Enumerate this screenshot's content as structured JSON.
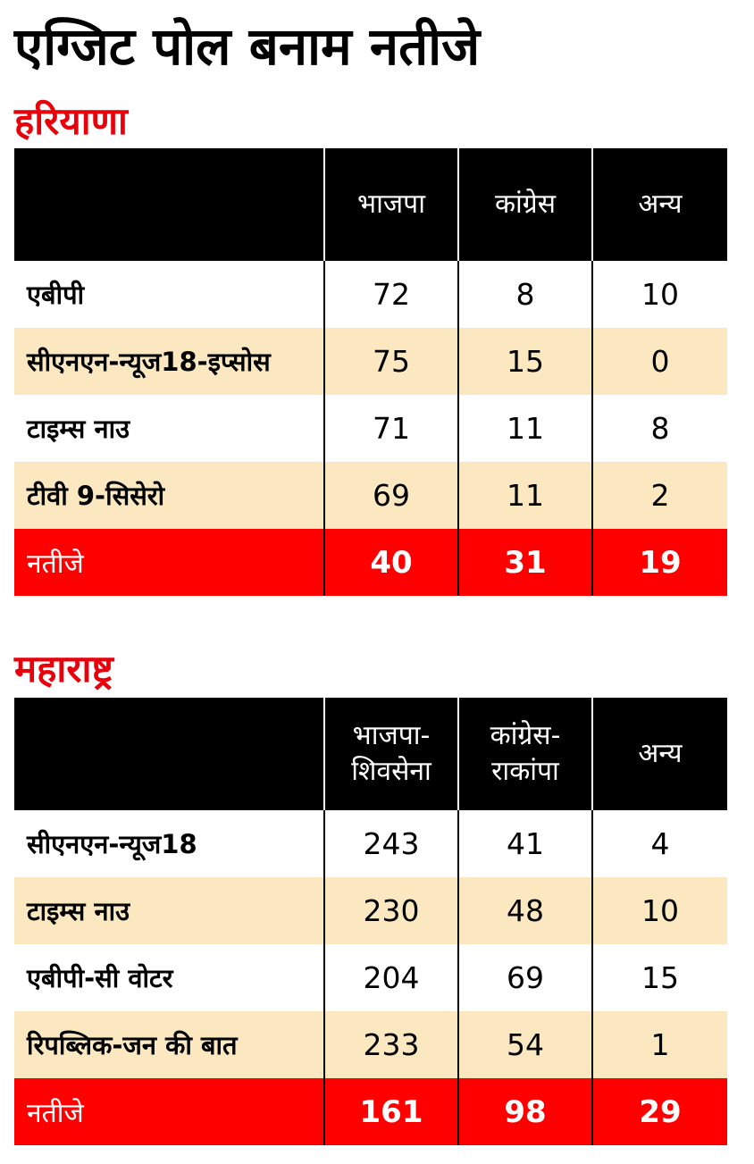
{
  "title": "एग्जिट पोल बनाम नतीजे",
  "colors": {
    "header_bg": "#000000",
    "accent_red": "#ff0000",
    "section_title_red": "#e8000b",
    "alt_row": "#fbe8c1"
  },
  "sections": [
    {
      "title": "हरियाणा",
      "columns": [
        "",
        "भाजपा",
        "कांग्रेस",
        "अन्य"
      ],
      "rows": [
        {
          "name": "एबीपी",
          "values": [
            "72",
            "8",
            "10"
          ]
        },
        {
          "name": "सीएनएन-न्यूज18-इप्सोस",
          "values": [
            "75",
            "15",
            "0"
          ]
        },
        {
          "name": "टाइम्स नाउ",
          "values": [
            "71",
            "11",
            "8"
          ]
        },
        {
          "name": "टीवी 9-सिसेरो",
          "values": [
            "69",
            "11",
            "2"
          ]
        }
      ],
      "result": {
        "name": "नतीजे",
        "values": [
          "40",
          "31",
          "19"
        ]
      }
    },
    {
      "title": "महाराष्ट्र",
      "columns": [
        "",
        "भाजपा-",
        "शिवसेना",
        "कांग्रेस-",
        "राकांपा",
        "अन्य"
      ],
      "rows": [
        {
          "name": "सीएनएन-न्यूज18",
          "values": [
            "243",
            "41",
            "4"
          ]
        },
        {
          "name": "टाइम्स नाउ",
          "values": [
            "230",
            "48",
            "10"
          ]
        },
        {
          "name": "एबीपी-सी वोटर",
          "values": [
            "204",
            "69",
            "15"
          ]
        },
        {
          "name": "रिपब्लिक-जन की बात",
          "values": [
            "233",
            "54",
            "1"
          ]
        }
      ],
      "result": {
        "name": "नतीजे",
        "values": [
          "161",
          "98",
          "29"
        ]
      }
    }
  ]
}
